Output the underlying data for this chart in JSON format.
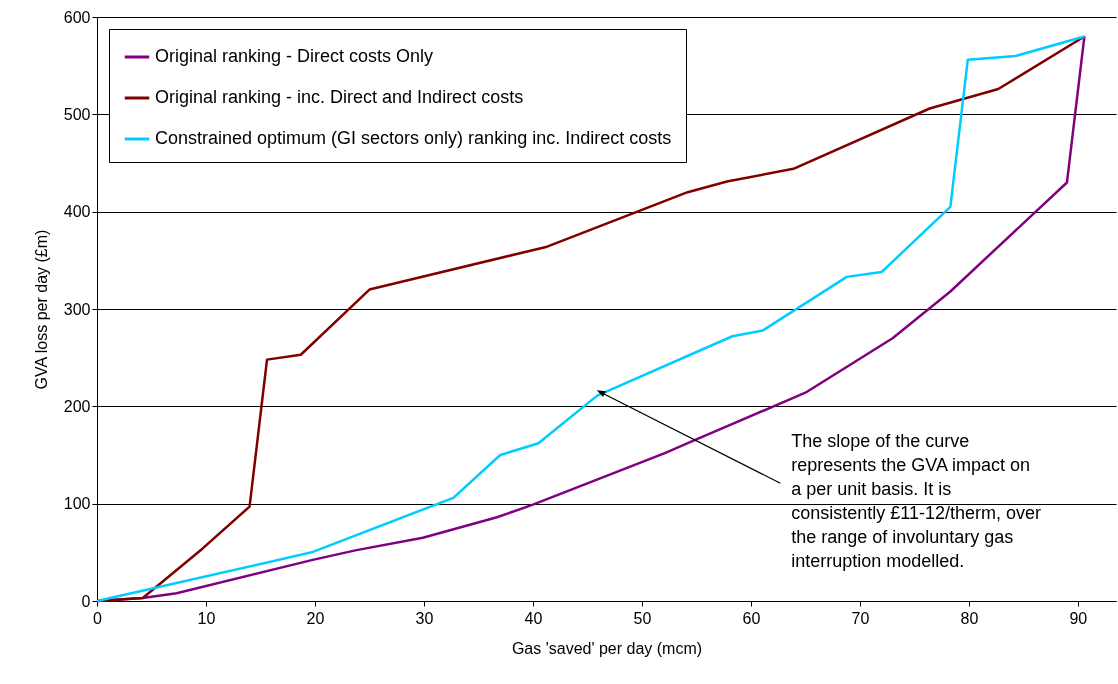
{
  "chart_data": {
    "type": "line",
    "xlabel": "Gas 'saved' per day (mcm)",
    "ylabel": "GVA loss per day (£m)",
    "xlim": [
      0,
      93.5
    ],
    "ylim": [
      0,
      600
    ],
    "xticks": [
      0,
      10,
      20,
      30,
      40,
      50,
      60,
      70,
      80,
      90
    ],
    "yticks": [
      0,
      100,
      200,
      300,
      400,
      500,
      600
    ],
    "grid": "y",
    "legend": "top left",
    "marker": "none",
    "line_style": "solid",
    "series": [
      {
        "name": "Original ranking - Direct costs Only",
        "color": "#800080",
        "x": [
          0,
          4.2,
          7.3,
          19.7,
          23.7,
          29.9,
          36.7,
          40,
          52.1,
          55,
          65,
          73,
          78.3,
          89,
          90.6
        ],
        "values": [
          0,
          3,
          8,
          42,
          52,
          65,
          86,
          99,
          152,
          166,
          214,
          270,
          318,
          430,
          580
        ]
      },
      {
        "name": "Original ranking - inc. Direct and Indirect costs",
        "color": "#800000",
        "x": [
          0,
          4.2,
          9.7,
          14,
          15.6,
          18.7,
          25,
          41.3,
          54.2,
          57.8,
          63.9,
          76.4,
          82.7,
          90.6
        ],
        "values": [
          0,
          3,
          54,
          97,
          248,
          253,
          320,
          364,
          420,
          431,
          444,
          506,
          526,
          580
        ]
      },
      {
        "name": "Constrained optimum (GI sectors only) ranking inc. Indirect costs",
        "color": "#00ccff",
        "x": [
          0,
          19.7,
          32.7,
          37,
          40.5,
          45.9,
          58.3,
          61.1,
          68.8,
          72,
          78.3,
          79.9,
          84.3,
          90.6
        ],
        "values": [
          0,
          50,
          106,
          150,
          162,
          211,
          272,
          278,
          333,
          338,
          405,
          556,
          560,
          580
        ]
      }
    ],
    "annotations": [
      {
        "text": "The slope of the curve\nrepresents the GVA impact on\na per unit basis.  It is\nconsistently £11-12/therm, over\nthe range of involuntary gas\ninterruption modelled.",
        "x": 46.3,
        "y": 214
      }
    ]
  }
}
